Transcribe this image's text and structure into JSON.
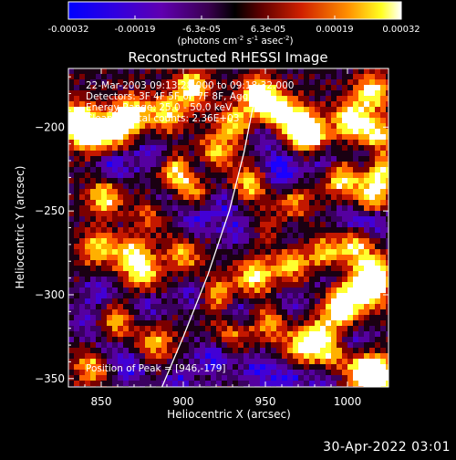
{
  "colorbar": {
    "tick_labels": [
      "-0.00032",
      "-0.00019",
      "-6.3e-05",
      "6.3e-05",
      "0.00019",
      "0.00032"
    ],
    "unit_label": "(photons cm",
    "unit_label_sup1": "-2",
    "unit_label_mid": " s",
    "unit_label_sup2": "-1",
    "unit_label_end": " asec",
    "unit_label_sup3": "-2",
    "unit_label_close": ")",
    "range": [
      -0.00032,
      0.00032
    ]
  },
  "annotations": {
    "time_range": "22-Mar-2003 09:13:28.000 to 09:18:32.000",
    "detectors": "Detectors: 3F 4F 5F 6F 7F 8F, Agg",
    "energy": "Energy Range: 25.0 - 50.0 keV",
    "method": "Clean     Total counts: 2.36E+03",
    "peak": "Position of Peak = [946,-179]"
  },
  "timestamp": "30-Apr-2022 03:01",
  "chart_data": {
    "type": "heatmap",
    "title": "Reconstructed RHESSI Image",
    "xlabel": "Heliocentric X (arcsec)",
    "ylabel": "Heliocentric Y (arcsec)",
    "xlim": [
      830,
      1025
    ],
    "ylim": [
      -355,
      -165
    ],
    "x_ticks": [
      850,
      900,
      950,
      1000
    ],
    "x_tick_labels": [
      "850",
      "900",
      "950",
      "1000"
    ],
    "y_ticks": [
      -200,
      -250,
      -300,
      -350
    ],
    "y_tick_labels": [
      "−200",
      "−250",
      "−300",
      "−350"
    ],
    "limb_curve": [
      [
        887,
        -355
      ],
      [
        900,
        -325
      ],
      [
        915,
        -288
      ],
      [
        928,
        -250
      ],
      [
        937,
        -215
      ],
      [
        942,
        -190
      ],
      [
        946,
        -176
      ]
    ],
    "colormap": [
      "#0000ff",
      "#4000c8",
      "#500070",
      "#2a0010",
      "#b81000",
      "#ff8000",
      "#ffff00",
      "#ffffff"
    ],
    "hotspots": [
      [
        835,
        -196,
        1.0
      ],
      [
        843,
        -204,
        0.9
      ],
      [
        857,
        -203,
        0.85
      ],
      [
        868,
        -192,
        0.95
      ],
      [
        890,
        -192,
        0.75
      ],
      [
        905,
        -177,
        0.85
      ],
      [
        919,
        -216,
        0.75
      ],
      [
        931,
        -198,
        0.7
      ],
      [
        946,
        -181,
        1.0
      ],
      [
        956,
        -190,
        0.8
      ],
      [
        970,
        -198,
        1.0
      ],
      [
        978,
        -206,
        0.9
      ],
      [
        1002,
        -196,
        0.95
      ],
      [
        1015,
        -179,
        0.85
      ],
      [
        1018,
        -205,
        0.8
      ],
      [
        852,
        -242,
        0.75
      ],
      [
        896,
        -227,
        0.8
      ],
      [
        908,
        -237,
        0.6
      ],
      [
        940,
        -234,
        0.7
      ],
      [
        967,
        -242,
        0.7
      ],
      [
        996,
        -231,
        0.75
      ],
      [
        1014,
        -242,
        0.8
      ],
      [
        848,
        -272,
        0.7
      ],
      [
        869,
        -276,
        0.75
      ],
      [
        875,
        -288,
        0.7
      ],
      [
        900,
        -276,
        0.6
      ],
      [
        920,
        -300,
        0.7
      ],
      [
        943,
        -289,
        0.8
      ],
      [
        965,
        -282,
        0.7
      ],
      [
        986,
        -276,
        0.65
      ],
      [
        1005,
        -270,
        0.75
      ],
      [
        1015,
        -287,
        1.0
      ],
      [
        1013,
        -298,
        0.9
      ],
      [
        996,
        -300,
        0.7
      ],
      [
        859,
        -316,
        0.65
      ],
      [
        883,
        -329,
        0.6
      ],
      [
        953,
        -316,
        0.6
      ],
      [
        972,
        -331,
        0.7
      ],
      [
        983,
        -324,
        0.65
      ],
      [
        997,
        -311,
        0.7
      ],
      [
        1011,
        -346,
        0.95
      ],
      [
        1019,
        -349,
        1.0
      ],
      [
        845,
        -342,
        0.7
      ],
      [
        990,
        -337,
        0.6
      ],
      [
        954,
        -262,
        0.5
      ],
      [
        881,
        -251,
        0.55
      ],
      [
        930,
        -322,
        0.55
      ],
      [
        1020,
        -226,
        0.9
      ]
    ],
    "coldspots": [
      [
        858,
        -223,
        0.8
      ],
      [
        887,
        -245,
        0.7
      ],
      [
        910,
        -225,
        0.9
      ],
      [
        958,
        -223,
        0.7
      ],
      [
        964,
        -234,
        0.8
      ],
      [
        984,
        -219,
        0.7
      ],
      [
        1013,
        -219,
        0.8
      ],
      [
        960,
        -265,
        0.7
      ],
      [
        933,
        -262,
        0.6
      ],
      [
        908,
        -256,
        0.7
      ],
      [
        1003,
        -254,
        0.7
      ],
      [
        1016,
        -257,
        0.7
      ],
      [
        850,
        -298,
        0.6
      ],
      [
        907,
        -300,
        0.7
      ],
      [
        877,
        -307,
        0.6
      ],
      [
        933,
        -311,
        0.8
      ],
      [
        965,
        -307,
        0.6
      ],
      [
        990,
        -291,
        0.7
      ],
      [
        918,
        -338,
        0.8
      ],
      [
        945,
        -345,
        0.7
      ],
      [
        963,
        -351,
        0.7
      ],
      [
        985,
        -349,
        0.6
      ],
      [
        867,
        -344,
        0.7
      ],
      [
        852,
        -334,
        0.6
      ],
      [
        897,
        -354,
        0.6
      ],
      [
        1004,
        -327,
        0.6
      ],
      [
        924,
        -244,
        0.6
      ],
      [
        948,
        -204,
        0.5
      ],
      [
        881,
        -216,
        0.6
      ],
      [
        842,
        -316,
        0.55
      ]
    ]
  }
}
